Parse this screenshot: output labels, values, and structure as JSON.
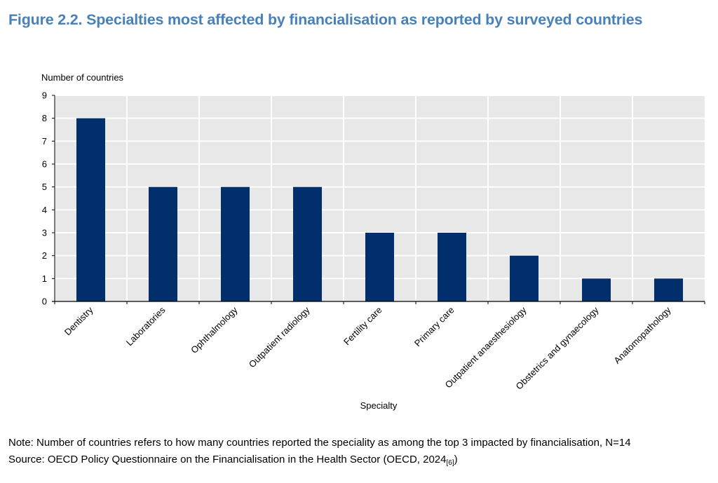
{
  "title": "Figure 2.2. Specialties most affected by financialisation as reported by surveyed countries",
  "chart_data": {
    "type": "bar",
    "ylabel": "Number of countries",
    "xlabel": "Specialty",
    "categories": [
      "Dentistry",
      "Laboratories",
      "Ophthalmology",
      "Outpatient radiology",
      "Fertility care",
      "Primary care",
      "Outpatient anaesthesiology",
      "Obstetrics and gynaecology",
      "Anatomopathology"
    ],
    "values": [
      8,
      5,
      5,
      5,
      3,
      3,
      2,
      1,
      1
    ],
    "ylim": [
      0,
      9
    ],
    "yticks": [
      "0",
      "1",
      "2",
      "3",
      "4",
      "5",
      "6",
      "7",
      "8",
      "9"
    ],
    "grid": true,
    "bar_color": "#002f6c",
    "plot_background": "#e8e8e8",
    "grid_color": "#ffffff"
  },
  "note": "Note: Number of countries refers to how many countries reported the speciality as among the top 3 impacted by financialisation, N=14",
  "source_text": "Source: OECD Policy Questionnaire on the Financialisation in the Health Sector (OECD, 2024",
  "source_ref": "[6]",
  "source_close": ")"
}
